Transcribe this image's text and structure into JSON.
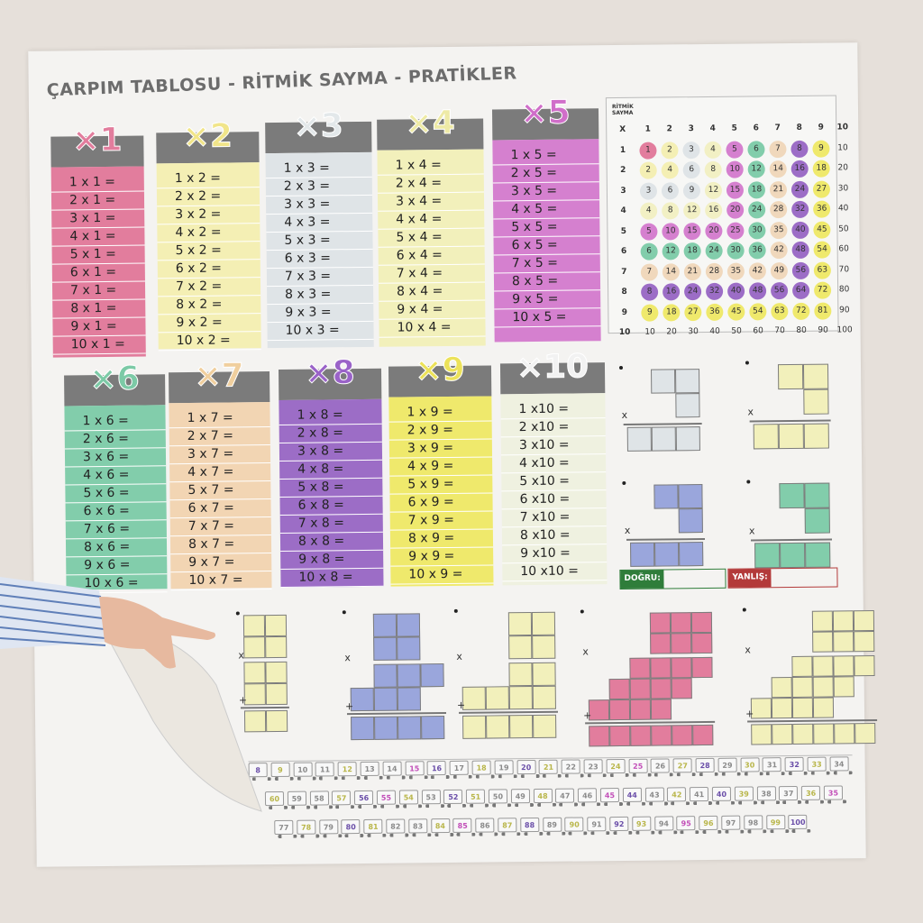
{
  "title": "ÇARPIM TABLOSU - RİTMİK SAYMA - PRATİKLER",
  "tables": [
    {
      "label": "×1",
      "color": "#e27d9d",
      "labelColor": "#e27d9d",
      "rows": [
        "1 x 1 =",
        "2 x 1 =",
        "3 x 1 =",
        "4 x 1 =",
        "5 x 1 =",
        "6 x 1 =",
        "7 x 1 =",
        "8 x 1 =",
        "9 x 1 =",
        "10 x 1 ="
      ]
    },
    {
      "label": "×2",
      "color": "#f4efb4",
      "labelColor": "#f1e58a",
      "rows": [
        "1 x 2 =",
        "2 x 2 =",
        "3 x 2 =",
        "4 x 2 =",
        "5 x 2 =",
        "6 x 2 =",
        "7 x 2 =",
        "8 x 2 =",
        "9 x 2 =",
        "10 x 2 ="
      ]
    },
    {
      "label": "×3",
      "color": "#dfe4e7",
      "labelColor": "#e3e8ea",
      "rows": [
        "1 x 3 =",
        "2 x 3 =",
        "3 x 3 =",
        "4 x 3 =",
        "5 x 3 =",
        "6 x 3 =",
        "7 x 3 =",
        "8 x 3 =",
        "9 x 3 =",
        "10 x 3 ="
      ]
    },
    {
      "label": "×4",
      "color": "#f2f0bb",
      "labelColor": "#eeeaa6",
      "rows": [
        "1 x 4 =",
        "2 x 4 =",
        "3 x 4 =",
        "4 x 4 =",
        "5 x 4 =",
        "6 x 4 =",
        "7 x 4 =",
        "8 x 4 =",
        "9 x 4 =",
        "10 x 4 ="
      ]
    },
    {
      "label": "×5",
      "color": "#d580cf",
      "labelColor": "#d06ec9",
      "rows": [
        "1 x 5 =",
        "2 x 5 =",
        "3 x 5 =",
        "4 x 5 =",
        "5 x 5 =",
        "6 x 5 =",
        "7 x 5 =",
        "8 x 5 =",
        "9 x 5 =",
        "10 x 5 ="
      ]
    },
    {
      "label": "×6",
      "color": "#82cdab",
      "labelColor": "#7ccaa6",
      "rows": [
        "1 x 6 =",
        "2 x 6 =",
        "3 x 6 =",
        "4 x 6 =",
        "5 x 6 =",
        "6 x 6 =",
        "7 x 6 =",
        "8 x 6 =",
        "9 x 6 =",
        "10 x 6 ="
      ]
    },
    {
      "label": "×7",
      "color": "#f2d5b3",
      "labelColor": "#f0cf9e",
      "rows": [
        "1 x 7 =",
        "2 x 7 =",
        "3 x 7 =",
        "4 x 7 =",
        "5 x 7 =",
        "6 x 7 =",
        "7 x 7 =",
        "8 x 7 =",
        "9 x 7 =",
        "10 x 7 ="
      ]
    },
    {
      "label": "×8",
      "color": "#9c6dc6",
      "labelColor": "#9a63c8",
      "rows": [
        "1 x 8 =",
        "2 x 8 =",
        "3 x 8 =",
        "4 x 8 =",
        "5 x 8 =",
        "6 x 8 =",
        "7 x 8 =",
        "8 x 8 =",
        "9 x 8 =",
        "10 x 8 ="
      ]
    },
    {
      "label": "×9",
      "color": "#efe96c",
      "labelColor": "#ece25a",
      "rows": [
        "1 x 9 =",
        "2 x 9 =",
        "3 x 9 =",
        "4 x 9 =",
        "5 x 9 =",
        "6 x 9 =",
        "7 x 9 =",
        "8 x 9 =",
        "9 x 9 =",
        "10 x 9 ="
      ]
    },
    {
      "label": "×10",
      "color": "#eff1e0",
      "labelColor": "#f2f2f2",
      "rows": [
        "1 x10 =",
        "2 x10 =",
        "3 x10 =",
        "4 x10 =",
        "5 x10 =",
        "6 x10 =",
        "7 x10 =",
        "8 x10 =",
        "9 x10 =",
        "10 x10 ="
      ]
    }
  ],
  "rhythm": {
    "heading": [
      "RİTMİK",
      "SAYMA"
    ],
    "corner": "X",
    "cols": [
      "1",
      "2",
      "3",
      "4",
      "5",
      "6",
      "7",
      "8",
      "9",
      "10"
    ],
    "rows": [
      [
        "1",
        "2",
        "3",
        "4",
        "5",
        "6",
        "7",
        "8",
        "9",
        "10"
      ],
      [
        "2",
        "4",
        "6",
        "8",
        "10",
        "12",
        "14",
        "16",
        "18",
        "20"
      ],
      [
        "3",
        "6",
        "9",
        "12",
        "15",
        "18",
        "21",
        "24",
        "27",
        "30"
      ],
      [
        "4",
        "8",
        "12",
        "16",
        "20",
        "24",
        "28",
        "32",
        "36",
        "40"
      ],
      [
        "5",
        "10",
        "15",
        "20",
        "25",
        "30",
        "35",
        "40",
        "45",
        "50"
      ],
      [
        "6",
        "12",
        "18",
        "24",
        "30",
        "36",
        "42",
        "48",
        "54",
        "60"
      ],
      [
        "7",
        "14",
        "21",
        "28",
        "35",
        "42",
        "49",
        "56",
        "63",
        "70"
      ],
      [
        "8",
        "16",
        "24",
        "32",
        "40",
        "48",
        "56",
        "64",
        "72",
        "80"
      ],
      [
        "9",
        "18",
        "27",
        "36",
        "45",
        "54",
        "63",
        "72",
        "81",
        "90"
      ],
      [
        "10",
        "20",
        "30",
        "40",
        "50",
        "60",
        "70",
        "80",
        "90",
        "100"
      ]
    ],
    "palette": [
      "#e27d9d",
      "#f4efb4",
      "#dfe4e7",
      "#f2f0c4",
      "#d580cf",
      "#82cdab",
      "#f0d8bc",
      "#9c6dc6",
      "#efe96c",
      ""
    ]
  },
  "practice": {
    "operator_times": "x",
    "operator_plus": "+",
    "colors": [
      "#dfe4e7",
      "#f2f0bb",
      "#9aa6dc",
      "#82cdab",
      "#f2f0bb",
      "#9aa6dc",
      "#f2f0bb",
      "#e27d9d",
      "#f2f0bb"
    ]
  },
  "score": {
    "correct_label": "DOĞRU:",
    "wrong_label": "YANLIŞ:",
    "correct_color": "#2f7d3a",
    "wrong_color": "#b33a3a"
  },
  "trains": [
    [
      "8",
      "9",
      "10",
      "11",
      "12",
      "13",
      "14",
      "15",
      "16",
      "17",
      "18",
      "19",
      "20",
      "21",
      "22",
      "23",
      "24",
      "25",
      "26",
      "27",
      "28",
      "29",
      "30",
      "31",
      "32",
      "33",
      "34"
    ],
    [
      "60",
      "59",
      "58",
      "57",
      "56",
      "55",
      "54",
      "53",
      "52",
      "51",
      "50",
      "49",
      "48",
      "47",
      "46",
      "45",
      "44",
      "43",
      "42",
      "41",
      "40",
      "39",
      "38",
      "37",
      "36",
      "35"
    ],
    [
      "77",
      "78",
      "79",
      "80",
      "81",
      "82",
      "83",
      "84",
      "85",
      "86",
      "87",
      "88",
      "89",
      "90",
      "91",
      "92",
      "93",
      "94",
      "95",
      "96",
      "97",
      "98",
      "99",
      "100"
    ]
  ]
}
